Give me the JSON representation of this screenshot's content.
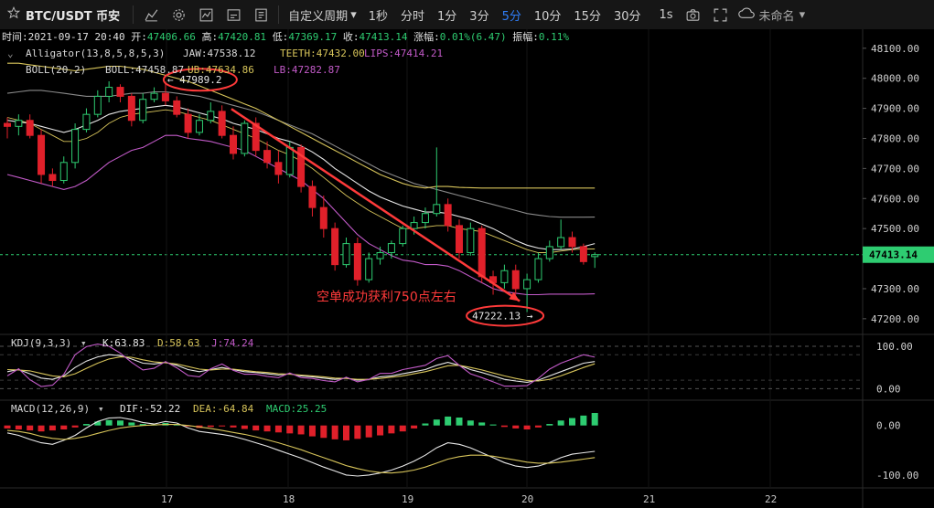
{
  "toolbar": {
    "symbol": "BTC/USDT 币安",
    "period_menu": "自定义周期",
    "timeframes": [
      "1秒",
      "分时",
      "1分",
      "3分",
      "5分",
      "10分",
      "15分",
      "30分"
    ],
    "active_timeframe": "5分",
    "seconds_label": "1s",
    "layout_name": "未命名",
    "icons": [
      "star-icon",
      "candles-icon",
      "indicators-icon",
      "gear-icon",
      "chart-window-icon",
      "save-icon",
      "template-icon",
      "camera-icon",
      "fullscreen-icon",
      "cloud-icon"
    ]
  },
  "legend": {
    "ohlc_line": [
      {
        "label": "时间:",
        "value": "2021-09-17 20:40",
        "color": "#e0e0e0"
      },
      {
        "label": "开:",
        "value": "47406.66",
        "color": "#2ecc71"
      },
      {
        "label": "高:",
        "value": "47420.81",
        "color": "#2ecc71"
      },
      {
        "label": "低:",
        "value": "47369.17",
        "color": "#2ecc71"
      },
      {
        "label": "收:",
        "value": "47413.14",
        "color": "#2ecc71"
      },
      {
        "label": "涨幅:",
        "value": "0.01%(6.47)",
        "color": "#2ecc71"
      },
      {
        "label": "振幅:",
        "value": "0.11%",
        "color": "#2ecc71"
      }
    ],
    "alligator": {
      "name": "Alligator(13,8,5,8,5,3)",
      "jaw": "JAW:47538.12",
      "teeth": "TEETH:47432.00",
      "lips": "LIPS:47414.21"
    },
    "boll": {
      "name": "BOLL(20,2)",
      "mid": "BOLL:47458.87",
      "ub": "UB:47634.86",
      "lb": "LB:47282.87"
    },
    "kdj": {
      "name": "KDJ(9,3,3)",
      "k": "K:63.83",
      "d": "D:58.63",
      "j": "J:74.24"
    },
    "macd": {
      "name": "MACD(12,26,9)",
      "dif": "DIF:-52.22",
      "dea": "DEA:-64.84",
      "macd": "MACD:25.25"
    }
  },
  "colors": {
    "up": "#2ecc71",
    "down": "#e0202a",
    "mid": "#e8e8e8",
    "upper": "#d7c45a",
    "lower": "#c25ac8",
    "jaw": "#8a8a8a",
    "annotation": "#ff3a3a"
  },
  "annotations": {
    "high_marker": "← 47989.2",
    "low_marker": "47222.13 →",
    "trade_note": "空单成功获利750点左右"
  },
  "chart_data": [
    {
      "type": "candlestick",
      "title": "BTC/USDT 币安",
      "timeframe": "5分",
      "x_ticks": [
        "17",
        "18",
        "19",
        "20",
        "21",
        "22"
      ],
      "price_axis": {
        "ticks": [
          48100,
          48000,
          47900,
          47800,
          47700,
          47600,
          47500,
          47400,
          47300,
          47200
        ],
        "range": [
          47160,
          48145
        ],
        "current_price": 47413.14,
        "current_label": "47413.14"
      },
      "candles": [
        {
          "o": 47850,
          "h": 47870,
          "l": 47800,
          "c": 47840
        },
        {
          "o": 47840,
          "h": 47880,
          "l": 47810,
          "c": 47860
        },
        {
          "o": 47860,
          "h": 47880,
          "l": 47800,
          "c": 47810
        },
        {
          "o": 47810,
          "h": 47830,
          "l": 47650,
          "c": 47680
        },
        {
          "o": 47680,
          "h": 47700,
          "l": 47640,
          "c": 47660
        },
        {
          "o": 47660,
          "h": 47740,
          "l": 47650,
          "c": 47720
        },
        {
          "o": 47720,
          "h": 47850,
          "l": 47700,
          "c": 47830
        },
        {
          "o": 47830,
          "h": 47900,
          "l": 47820,
          "c": 47880
        },
        {
          "o": 47880,
          "h": 47960,
          "l": 47870,
          "c": 47940
        },
        {
          "o": 47940,
          "h": 47990,
          "l": 47920,
          "c": 47970
        },
        {
          "o": 47970,
          "h": 47980,
          "l": 47920,
          "c": 47940
        },
        {
          "o": 47940,
          "h": 47950,
          "l": 47840,
          "c": 47860
        },
        {
          "o": 47860,
          "h": 47950,
          "l": 47850,
          "c": 47930
        },
        {
          "o": 47930,
          "h": 47970,
          "l": 47920,
          "c": 47950
        },
        {
          "o": 47950,
          "h": 47989.2,
          "l": 47910,
          "c": 47925
        },
        {
          "o": 47925,
          "h": 47940,
          "l": 47870,
          "c": 47880
        },
        {
          "o": 47880,
          "h": 47900,
          "l": 47800,
          "c": 47820
        },
        {
          "o": 47820,
          "h": 47880,
          "l": 47810,
          "c": 47860
        },
        {
          "o": 47860,
          "h": 47920,
          "l": 47850,
          "c": 47890
        },
        {
          "o": 47890,
          "h": 47910,
          "l": 47800,
          "c": 47810
        },
        {
          "o": 47810,
          "h": 47840,
          "l": 47730,
          "c": 47750
        },
        {
          "o": 47750,
          "h": 47860,
          "l": 47740,
          "c": 47850
        },
        {
          "o": 47850,
          "h": 47870,
          "l": 47740,
          "c": 47760
        },
        {
          "o": 47760,
          "h": 47790,
          "l": 47700,
          "c": 47720
        },
        {
          "o": 47720,
          "h": 47760,
          "l": 47650,
          "c": 47680
        },
        {
          "o": 47680,
          "h": 47790,
          "l": 47670,
          "c": 47770
        },
        {
          "o": 47770,
          "h": 47780,
          "l": 47620,
          "c": 47640
        },
        {
          "o": 47640,
          "h": 47660,
          "l": 47540,
          "c": 47570
        },
        {
          "o": 47570,
          "h": 47610,
          "l": 47470,
          "c": 47500
        },
        {
          "o": 47500,
          "h": 47520,
          "l": 47360,
          "c": 47380
        },
        {
          "o": 47380,
          "h": 47470,
          "l": 47370,
          "c": 47450
        },
        {
          "o": 47450,
          "h": 47470,
          "l": 47310,
          "c": 47330
        },
        {
          "o": 47330,
          "h": 47420,
          "l": 47320,
          "c": 47400
        },
        {
          "o": 47400,
          "h": 47440,
          "l": 47380,
          "c": 47420
        },
        {
          "o": 47420,
          "h": 47460,
          "l": 47400,
          "c": 47450
        },
        {
          "o": 47450,
          "h": 47510,
          "l": 47440,
          "c": 47500
        },
        {
          "o": 47500,
          "h": 47540,
          "l": 47480,
          "c": 47520
        },
        {
          "o": 47520,
          "h": 47570,
          "l": 47500,
          "c": 47550
        },
        {
          "o": 47550,
          "h": 47770,
          "l": 47540,
          "c": 47580
        },
        {
          "o": 47580,
          "h": 47600,
          "l": 47490,
          "c": 47510
        },
        {
          "o": 47510,
          "h": 47530,
          "l": 47400,
          "c": 47420
        },
        {
          "o": 47420,
          "h": 47520,
          "l": 47410,
          "c": 47500
        },
        {
          "o": 47500,
          "h": 47510,
          "l": 47320,
          "c": 47340
        },
        {
          "o": 47340,
          "h": 47360,
          "l": 47280,
          "c": 47320
        },
        {
          "o": 47320,
          "h": 47380,
          "l": 47300,
          "c": 47360
        },
        {
          "o": 47360,
          "h": 47380,
          "l": 47280,
          "c": 47300
        },
        {
          "o": 47300,
          "h": 47350,
          "l": 47222.13,
          "c": 47330
        },
        {
          "o": 47330,
          "h": 47420,
          "l": 47320,
          "c": 47400
        },
        {
          "o": 47400,
          "h": 47460,
          "l": 47390,
          "c": 47440
        },
        {
          "o": 47440,
          "h": 47530,
          "l": 47430,
          "c": 47470
        },
        {
          "o": 47470,
          "h": 47490,
          "l": 47420,
          "c": 47440
        },
        {
          "o": 47440,
          "h": 47450,
          "l": 47380,
          "c": 47390
        },
        {
          "o": 47406.66,
          "h": 47420.81,
          "l": 47369.17,
          "c": 47413.14
        }
      ],
      "boll": {
        "mid": [
          47860,
          47855,
          47850,
          47840,
          47830,
          47820,
          47830,
          47845,
          47860,
          47880,
          47890,
          47895,
          47900,
          47905,
          47910,
          47905,
          47895,
          47885,
          47875,
          47865,
          47850,
          47840,
          47830,
          47815,
          47800,
          47790,
          47775,
          47755,
          47730,
          47700,
          47675,
          47650,
          47625,
          47605,
          47590,
          47575,
          47565,
          47555,
          47555,
          47550,
          47540,
          47530,
          47515,
          47500,
          47480,
          47460,
          47445,
          47435,
          47430,
          47430,
          47432,
          47440,
          47450
        ],
        "upper": [
          48050,
          48050,
          48045,
          48040,
          48035,
          48030,
          48025,
          48030,
          48035,
          48040,
          48040,
          48035,
          48030,
          48020,
          48010,
          48000,
          47990,
          47975,
          47960,
          47945,
          47930,
          47915,
          47900,
          47880,
          47860,
          47840,
          47820,
          47800,
          47780,
          47760,
          47740,
          47720,
          47700,
          47680,
          47665,
          47650,
          47640,
          47635,
          47640,
          47640,
          47637,
          47636,
          47635,
          47635,
          47635,
          47635,
          47635,
          47635,
          47635,
          47635,
          47635,
          47635,
          47634.86
        ],
        "lower": [
          47680,
          47670,
          47660,
          47650,
          47640,
          47630,
          47640,
          47660,
          47690,
          47720,
          47740,
          47760,
          47770,
          47790,
          47810,
          47810,
          47800,
          47795,
          47790,
          47780,
          47770,
          47760,
          47740,
          47720,
          47700,
          47680,
          47660,
          47630,
          47600,
          47560,
          47520,
          47480,
          47450,
          47430,
          47410,
          47395,
          47390,
          47380,
          47380,
          47375,
          47360,
          47340,
          47320,
          47300,
          47290,
          47285,
          47280,
          47280,
          47282,
          47282,
          47282,
          47282,
          47282.87
        ]
      },
      "alligator": {
        "jaw": [
          47950,
          47955,
          47960,
          47960,
          47955,
          47950,
          47945,
          47940,
          47940,
          47940,
          47945,
          47950,
          47950,
          47955,
          47955,
          47950,
          47945,
          47940,
          47930,
          47920,
          47910,
          47900,
          47890,
          47875,
          47860,
          47845,
          47830,
          47815,
          47795,
          47775,
          47755,
          47735,
          47715,
          47695,
          47680,
          47665,
          47650,
          47640,
          47630,
          47620,
          47610,
          47600,
          47590,
          47580,
          47570,
          47560,
          47550,
          47545,
          47540,
          47538,
          47538,
          47538,
          47538.12
        ],
        "teeth": [
          47870,
          47860,
          47850,
          47830,
          47810,
          47790,
          47790,
          47800,
          47820,
          47850,
          47870,
          47880,
          47885,
          47890,
          47895,
          47890,
          47880,
          47870,
          47860,
          47845,
          47830,
          47815,
          47800,
          47780,
          47760,
          47745,
          47725,
          47700,
          47670,
          47640,
          47610,
          47585,
          47560,
          47540,
          47520,
          47500,
          47500,
          47505,
          47510,
          47510,
          47500,
          47495,
          47490,
          47475,
          47460,
          47445,
          47430,
          47420,
          47420,
          47425,
          47430,
          47432,
          47432.0
        ]
      }
    },
    {
      "type": "line",
      "title": "KDJ(9,3,3)",
      "ylim": [
        -10,
        115
      ],
      "y_ticks": [
        100,
        0
      ],
      "y_tick_labels": [
        "100.00",
        "0.00"
      ],
      "series": [
        {
          "name": "K",
          "values": [
            40,
            45,
            35,
            25,
            22,
            30,
            50,
            65,
            75,
            80,
            78,
            70,
            60,
            58,
            62,
            55,
            45,
            40,
            45,
            50,
            45,
            40,
            38,
            35,
            32,
            35,
            30,
            28,
            25,
            22,
            25,
            20,
            22,
            28,
            30,
            35,
            40,
            45,
            55,
            62,
            55,
            45,
            38,
            30,
            22,
            18,
            15,
            20,
            30,
            40,
            50,
            60,
            63.83
          ]
        },
        {
          "name": "D",
          "values": [
            45,
            44,
            42,
            36,
            30,
            28,
            35,
            48,
            60,
            70,
            75,
            74,
            68,
            63,
            61,
            58,
            52,
            46,
            44,
            46,
            46,
            43,
            40,
            38,
            35,
            34,
            32,
            30,
            28,
            25,
            24,
            22,
            22,
            24,
            27,
            30,
            35,
            40,
            47,
            54,
            55,
            50,
            44,
            37,
            30,
            24,
            19,
            18,
            22,
            30,
            40,
            50,
            58.63
          ]
        },
        {
          "name": "J",
          "values": [
            30,
            47,
            21,
            5,
            8,
            34,
            80,
            99,
            105,
            100,
            84,
            62,
            44,
            48,
            64,
            49,
            31,
            28,
            47,
            58,
            43,
            34,
            34,
            29,
            26,
            37,
            26,
            24,
            19,
            16,
            27,
            16,
            22,
            36,
            36,
            45,
            50,
            55,
            71,
            78,
            55,
            35,
            26,
            16,
            6,
            6,
            7,
            24,
            46,
            60,
            70,
            80,
            74.24
          ]
        }
      ]
    },
    {
      "type": "bar",
      "title": "MACD(12,26,9)",
      "ylim": [
        -115,
        40
      ],
      "y_ticks": [
        0,
        -100
      ],
      "y_tick_labels": [
        "0.00",
        "-100.00"
      ],
      "histogram": [
        -6,
        -8,
        -10,
        -12,
        -10,
        -8,
        -4,
        3,
        8,
        11,
        10,
        6,
        3,
        2,
        5,
        3,
        -2,
        -5,
        -3,
        -1,
        -4,
        -7,
        -10,
        -12,
        -14,
        -16,
        -18,
        -22,
        -25,
        -28,
        -30,
        -27,
        -24,
        -20,
        -16,
        -12,
        -6,
        4,
        12,
        18,
        16,
        10,
        6,
        2,
        -3,
        -6,
        -8,
        -4,
        3,
        10,
        15,
        20,
        25.25
      ],
      "series": [
        {
          "name": "DIF",
          "values": [
            -15,
            -20,
            -28,
            -35,
            -38,
            -30,
            -20,
            -5,
            8,
            15,
            16,
            12,
            6,
            3,
            8,
            5,
            -5,
            -12,
            -15,
            -18,
            -22,
            -28,
            -35,
            -42,
            -50,
            -58,
            -66,
            -75,
            -84,
            -92,
            -100,
            -102,
            -100,
            -96,
            -90,
            -82,
            -72,
            -60,
            -45,
            -35,
            -38,
            -45,
            -55,
            -65,
            -75,
            -82,
            -85,
            -82,
            -75,
            -65,
            -58,
            -55,
            -52.22
          ]
        },
        {
          "name": "DEA",
          "values": [
            -10,
            -12,
            -16,
            -22,
            -26,
            -28,
            -26,
            -22,
            -16,
            -10,
            -5,
            -2,
            0,
            1,
            2,
            2,
            0,
            -3,
            -6,
            -10,
            -14,
            -18,
            -23,
            -29,
            -35,
            -42,
            -49,
            -57,
            -65,
            -73,
            -81,
            -87,
            -92,
            -95,
            -96,
            -94,
            -90,
            -84,
            -76,
            -68,
            -63,
            -60,
            -60,
            -62,
            -66,
            -70,
            -74,
            -76,
            -76,
            -74,
            -71,
            -68,
            -64.84
          ]
        }
      ]
    }
  ]
}
